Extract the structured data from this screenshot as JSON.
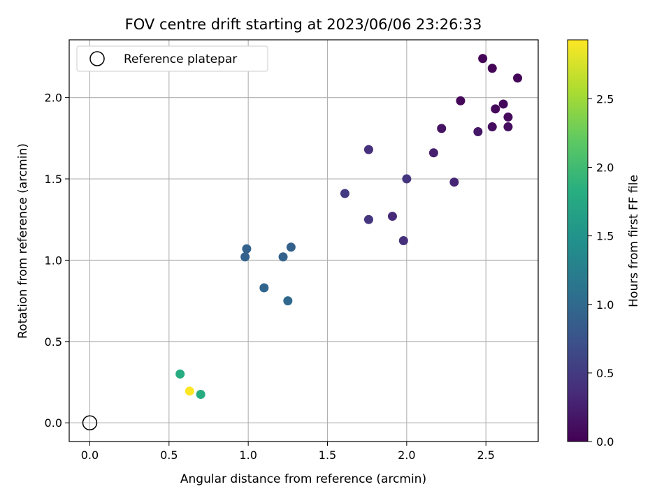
{
  "chart_data": {
    "type": "scatter",
    "title": "FOV centre drift starting at 2023/06/06 23:26:33",
    "xlabel": "Angular distance from reference (arcmin)",
    "ylabel": "Rotation from reference (arcmin)",
    "xlim": [
      -0.13,
      2.83
    ],
    "ylim": [
      -0.115,
      2.355
    ],
    "xticks": [
      0.0,
      0.5,
      1.0,
      1.5,
      2.0,
      2.5
    ],
    "yticks": [
      0.0,
      0.5,
      1.0,
      1.5,
      2.0
    ],
    "xtick_labels": [
      "0.0",
      "0.5",
      "1.0",
      "1.5",
      "2.0",
      "2.5"
    ],
    "ytick_labels": [
      "0.0",
      "0.5",
      "1.0",
      "1.5",
      "2.0"
    ],
    "grid": true,
    "colormap": "viridis",
    "colorbar": {
      "label": "Hours from first FF file",
      "range": [
        0.0,
        2.93
      ],
      "ticks": [
        0.0,
        0.5,
        1.0,
        1.5,
        2.0,
        2.5
      ],
      "tick_labels": [
        "0.0",
        "0.5",
        "1.0",
        "1.5",
        "2.0",
        "2.5"
      ]
    },
    "legend": {
      "position": "top-left",
      "entries": [
        {
          "label": "Reference platepar",
          "marker": "open-circle",
          "color": "#000000"
        }
      ]
    },
    "reference_point": {
      "x": 0.0,
      "y": 0.0
    },
    "points": [
      {
        "x": 2.48,
        "y": 2.24,
        "hours": 0.02
      },
      {
        "x": 2.54,
        "y": 2.18,
        "hours": 0.03
      },
      {
        "x": 2.7,
        "y": 2.12,
        "hours": 0.04
      },
      {
        "x": 2.34,
        "y": 1.98,
        "hours": 0.05
      },
      {
        "x": 2.61,
        "y": 1.96,
        "hours": 0.06
      },
      {
        "x": 2.56,
        "y": 1.93,
        "hours": 0.07
      },
      {
        "x": 2.64,
        "y": 1.88,
        "hours": 0.08
      },
      {
        "x": 2.54,
        "y": 1.82,
        "hours": 0.1
      },
      {
        "x": 2.64,
        "y": 1.82,
        "hours": 0.11
      },
      {
        "x": 2.22,
        "y": 1.81,
        "hours": 0.15
      },
      {
        "x": 2.45,
        "y": 1.79,
        "hours": 0.18
      },
      {
        "x": 2.17,
        "y": 1.66,
        "hours": 0.25
      },
      {
        "x": 1.76,
        "y": 1.68,
        "hours": 0.4
      },
      {
        "x": 2.3,
        "y": 1.48,
        "hours": 0.3
      },
      {
        "x": 2.0,
        "y": 1.5,
        "hours": 0.45
      },
      {
        "x": 1.61,
        "y": 1.41,
        "hours": 0.5
      },
      {
        "x": 1.91,
        "y": 1.27,
        "hours": 0.35
      },
      {
        "x": 1.76,
        "y": 1.25,
        "hours": 0.45
      },
      {
        "x": 1.98,
        "y": 1.12,
        "hours": 0.4
      },
      {
        "x": 0.99,
        "y": 1.07,
        "hours": 0.92
      },
      {
        "x": 1.27,
        "y": 1.08,
        "hours": 0.9
      },
      {
        "x": 0.98,
        "y": 1.02,
        "hours": 0.92
      },
      {
        "x": 1.22,
        "y": 1.02,
        "hours": 0.92
      },
      {
        "x": 1.1,
        "y": 0.83,
        "hours": 0.95
      },
      {
        "x": 1.25,
        "y": 0.75,
        "hours": 1.0
      },
      {
        "x": 0.57,
        "y": 0.3,
        "hours": 1.8
      },
      {
        "x": 0.63,
        "y": 0.195,
        "hours": 2.93
      },
      {
        "x": 0.7,
        "y": 0.175,
        "hours": 1.8
      }
    ]
  }
}
